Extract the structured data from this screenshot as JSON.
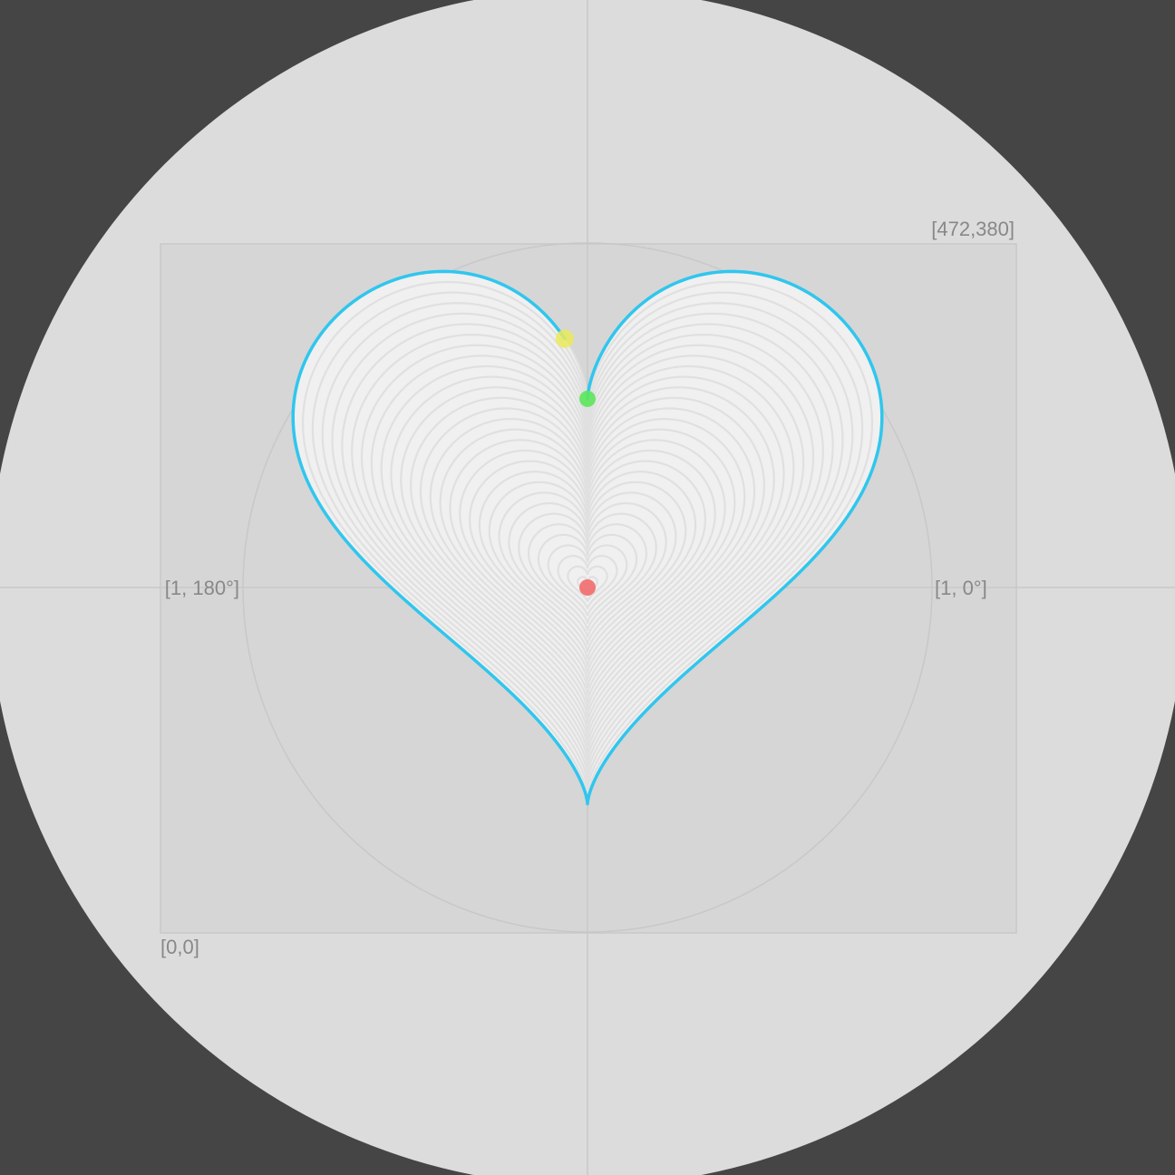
{
  "colors": {
    "page_background": "#454545",
    "canvas": "#DCDCDC",
    "frame_fill": "#D6D6D6",
    "guide_lines": "#C8C8C8",
    "label_text": "#888888",
    "contour_fill": "#F0F0F0",
    "contour_gap": "#E0E0E0",
    "outline": "#30C6EE",
    "origin_point": "#F26B6B",
    "inner_cusp_point": "#5CE65C",
    "trace_point": "#EAEA5A"
  },
  "labels": {
    "top_right_corner": "[472,380]",
    "bottom_left_corner": "[0,0]",
    "polar_zero": "[1, 0°]",
    "polar_one_eighty": "[1, 180°]"
  },
  "curve": {
    "shape": "heart",
    "nested_contours": 30,
    "trace_progress": 0.93
  },
  "markers": [
    {
      "name": "origin",
      "color": "red"
    },
    {
      "name": "inner-cusp",
      "color": "green"
    },
    {
      "name": "trace-head",
      "color": "yellow"
    }
  ]
}
